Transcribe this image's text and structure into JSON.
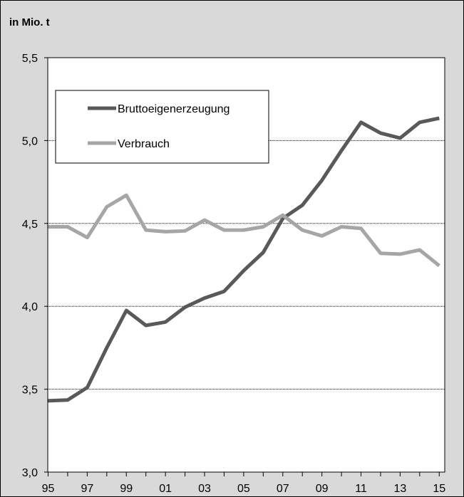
{
  "chart_data": {
    "type": "line",
    "unit_label": "in Mio. t",
    "x": [
      "95",
      "96",
      "97",
      "98",
      "99",
      "00",
      "01",
      "02",
      "03",
      "04",
      "05",
      "06",
      "07",
      "08",
      "09",
      "10",
      "11",
      "12",
      "13",
      "14",
      "15"
    ],
    "x_tick_labels": [
      "95",
      "97",
      "99",
      "01",
      "03",
      "05",
      "07",
      "09",
      "11",
      "13",
      "15"
    ],
    "y_tick_labels": [
      "3,0",
      "3,5",
      "4,0",
      "4,5",
      "5,0",
      "5,5"
    ],
    "ylim": [
      3.0,
      5.5
    ],
    "y_ticks": [
      3.0,
      3.5,
      4.0,
      4.5,
      5.0,
      5.5
    ],
    "grid": "horizontal dotted",
    "legend_position": "top-left",
    "series": [
      {
        "name": "Bruttoeigenerzeugung",
        "color": "#595959",
        "values": [
          3.43,
          3.435,
          3.51,
          3.75,
          3.975,
          3.885,
          3.905,
          3.995,
          4.05,
          4.09,
          4.215,
          4.325,
          4.53,
          4.61,
          4.76,
          4.94,
          5.11,
          5.045,
          5.015,
          5.11,
          5.135
        ]
      },
      {
        "name": "Verbrauch",
        "color": "#a6a6a6",
        "values": [
          4.48,
          4.48,
          4.415,
          4.6,
          4.67,
          4.46,
          4.45,
          4.455,
          4.52,
          4.46,
          4.46,
          4.48,
          4.55,
          4.46,
          4.425,
          4.48,
          4.47,
          4.32,
          4.315,
          4.34,
          4.245
        ]
      }
    ]
  }
}
